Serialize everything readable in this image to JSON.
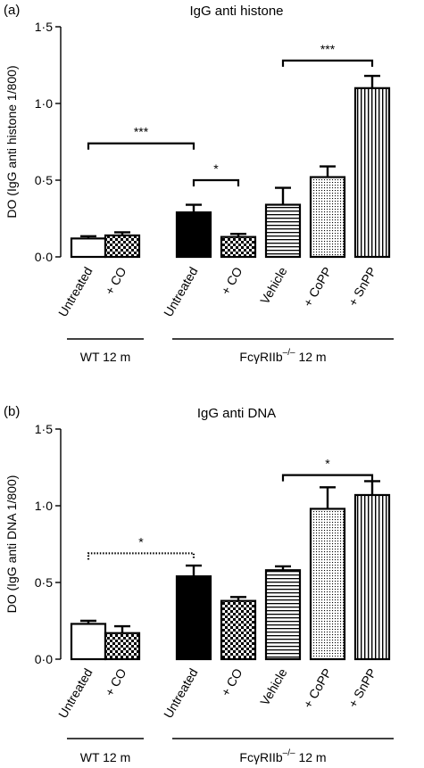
{
  "colors": {
    "ink": "#000000",
    "white": "#ffffff",
    "dots": "#b5b5b5"
  },
  "chart_data": [
    {
      "panel": "(a)",
      "title": "IgG anti histone",
      "type": "bar",
      "ylabel": "DO (IgG anti histone 1/800)",
      "ylim": [
        0,
        1.5
      ],
      "yticks": [
        0,
        0.5,
        1.0,
        1.5
      ],
      "ytick_labels": [
        "0·0",
        "0·5",
        "1·0",
        "1·5"
      ],
      "categories": [
        "Untreated",
        "+ CO",
        "Untreated",
        "+ CO",
        "Vehicle",
        "+ CoPP",
        "+ SnPP"
      ],
      "values": [
        0.12,
        0.14,
        0.29,
        0.13,
        0.34,
        0.52,
        1.1
      ],
      "errors": [
        0.015,
        0.02,
        0.05,
        0.02,
        0.11,
        0.07,
        0.08
      ],
      "patterns": [
        "white",
        "checker",
        "black",
        "checker",
        "hstripes",
        "dots",
        "vstripes"
      ],
      "groups": [
        {
          "label": "WT 12 m",
          "start": 0,
          "end": 1
        },
        {
          "label": "FcγRIIb",
          "sup": "–/–",
          "suffix": " 12 m",
          "start": 2,
          "end": 6
        }
      ],
      "significance": [
        {
          "from": 0,
          "to": 2,
          "label": "***",
          "y": 0.74,
          "style": "solid"
        },
        {
          "from": 2,
          "to": 3,
          "label": "*",
          "y": 0.5,
          "style": "solid"
        },
        {
          "from": 4,
          "to": 6,
          "label": "***",
          "y": 1.28,
          "style": "solid"
        }
      ]
    },
    {
      "panel": "(b)",
      "title": "IgG anti DNA",
      "type": "bar",
      "ylabel": "DO (IgG anti DNA 1/800)",
      "ylim": [
        0,
        1.5
      ],
      "yticks": [
        0,
        0.5,
        1.0,
        1.5
      ],
      "ytick_labels": [
        "0·0",
        "0·5",
        "1·0",
        "1·5"
      ],
      "categories": [
        "Untreated",
        "+ CO",
        "Untreated",
        "+ CO",
        "Vehicle",
        "+ CoPP",
        "+ SnPP"
      ],
      "values": [
        0.23,
        0.17,
        0.54,
        0.38,
        0.58,
        0.98,
        1.07
      ],
      "errors": [
        0.02,
        0.045,
        0.07,
        0.025,
        0.025,
        0.14,
        0.09
      ],
      "patterns": [
        "white",
        "checker",
        "black",
        "checker",
        "hstripes",
        "dots",
        "vstripes"
      ],
      "groups": [
        {
          "label": "WT 12 m",
          "start": 0,
          "end": 1
        },
        {
          "label": "FcγRIIb",
          "sup": "–/–",
          "suffix": " 12 m",
          "start": 2,
          "end": 6
        }
      ],
      "significance": [
        {
          "from": 0,
          "to": 2,
          "label": "*",
          "y": 0.69,
          "style": "dotted"
        },
        {
          "from": 4,
          "to": 6,
          "label": "*",
          "y": 1.2,
          "style": "solid"
        }
      ]
    }
  ]
}
